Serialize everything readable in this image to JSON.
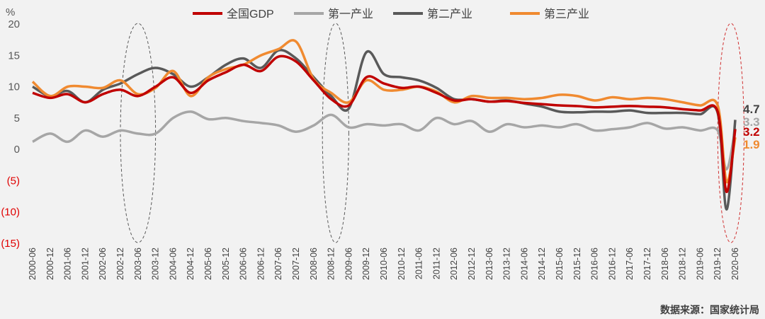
{
  "chart_data": {
    "type": "line",
    "ylabel": "%",
    "ylim": [
      -15,
      20
    ],
    "yticks": [
      20,
      15,
      10,
      5,
      0,
      -5,
      -10,
      -15
    ],
    "ytick_labels": [
      "20",
      "15",
      "10",
      "5",
      "0",
      "(5)",
      "(10)",
      "(15)"
    ],
    "xtick_labels": [
      "2000-06",
      "2000-12",
      "2001-06",
      "2001-12",
      "2002-06",
      "2002-12",
      "2003-06",
      "2003-12",
      "2004-06",
      "2004-12",
      "2005-06",
      "2005-12",
      "2006-06",
      "2006-12",
      "2007-06",
      "2007-12",
      "2008-06",
      "2008-12",
      "2009-06",
      "2009-12",
      "2010-06",
      "2010-12",
      "2011-06",
      "2011-12",
      "2012-06",
      "2012-12",
      "2013-06",
      "2013-12",
      "2014-06",
      "2014-12",
      "2015-06",
      "2015-12",
      "2016-06",
      "2016-12",
      "2017-06",
      "2017-12",
      "2018-06",
      "2018-12",
      "2019-06",
      "2019-12",
      "2020-06"
    ],
    "x": [
      "2000-06",
      "2000-12",
      "2001-06",
      "2001-12",
      "2002-06",
      "2002-12",
      "2003-06",
      "2003-12",
      "2004-06",
      "2004-12",
      "2005-06",
      "2005-12",
      "2006-06",
      "2006-12",
      "2007-06",
      "2007-12",
      "2008-06",
      "2008-12",
      "2009-06",
      "2009-12",
      "2010-06",
      "2010-12",
      "2011-06",
      "2011-12",
      "2012-06",
      "2012-12",
      "2013-06",
      "2013-12",
      "2014-06",
      "2014-12",
      "2015-06",
      "2015-12",
      "2016-06",
      "2016-12",
      "2017-06",
      "2017-12",
      "2018-06",
      "2018-12",
      "2019-06",
      "2019-12",
      "2020-03",
      "2020-06"
    ],
    "series": [
      {
        "name": "第一产业",
        "color": "#a6a6a6",
        "values": [
          1.2,
          2.5,
          1.2,
          3,
          2,
          3,
          2.5,
          2.5,
          5,
          6,
          4.8,
          5,
          4.5,
          4.2,
          3.8,
          2.8,
          3.8,
          5.5,
          3.5,
          4,
          3.8,
          4,
          3,
          5,
          4,
          4.5,
          2.8,
          4,
          3.5,
          3.8,
          3.5,
          4,
          3,
          3.2,
          3.5,
          4.2,
          3.3,
          3.5,
          3,
          3,
          -3.2,
          3.3
        ]
      },
      {
        "name": "第二产业",
        "color": "#595959",
        "values": [
          10,
          8.5,
          9.3,
          7.5,
          9.5,
          10.5,
          12,
          13,
          12,
          10,
          11.5,
          13.5,
          14.5,
          13,
          15.8,
          14.5,
          11.5,
          8.5,
          6.5,
          15.5,
          12,
          11.5,
          11,
          9.8,
          8,
          8,
          7.6,
          7.8,
          7.3,
          6.8,
          6,
          5.9,
          6,
          6,
          6.2,
          5.8,
          5.8,
          5.8,
          5.6,
          5.8,
          -9.6,
          4.7
        ]
      },
      {
        "name": "第三产业",
        "color": "#f08a30",
        "values": [
          10.8,
          8.5,
          10,
          10,
          9.8,
          11,
          8.8,
          9.8,
          12.5,
          8.5,
          11.5,
          12.8,
          13.5,
          15,
          16,
          17.2,
          11.2,
          9,
          7.5,
          11,
          9.5,
          9.5,
          10,
          9.2,
          7.5,
          8.5,
          8.2,
          8.2,
          8,
          8.2,
          8.7,
          8.5,
          7.8,
          8.3,
          8,
          8.2,
          8,
          7.5,
          7,
          7,
          -5.2,
          1.9
        ]
      },
      {
        "name": "全国GDP",
        "color": "#c00000",
        "values": [
          9,
          8.2,
          8.8,
          7.5,
          8.8,
          9.5,
          8.5,
          10,
          11.5,
          9,
          11,
          12.3,
          13.5,
          12.5,
          14.8,
          14,
          11,
          8,
          7,
          11.5,
          10.5,
          9.8,
          10,
          9,
          7.8,
          8,
          7.6,
          7.7,
          7.4,
          7.2,
          7,
          6.9,
          6.7,
          6.8,
          6.9,
          6.8,
          6.7,
          6.4,
          6.2,
          6,
          -6.8,
          3.2
        ]
      }
    ],
    "legend": {
      "position": "top",
      "entries": [
        "全国GDP",
        "第一产业",
        "第二产业",
        "第三产业"
      ]
    },
    "end_labels": [
      {
        "text": "4.7",
        "color": "#404040"
      },
      {
        "text": "3.3",
        "color": "#a6a6a6"
      },
      {
        "text": "3.2",
        "color": "#c00000"
      },
      {
        "text": "1.9",
        "color": "#f08a30"
      }
    ],
    "highlight_periods": [
      {
        "from": "2002-12",
        "to": "2003-12",
        "color": "#595959"
      },
      {
        "from": "2008-09",
        "to": "2009-06",
        "color": "#595959"
      },
      {
        "from": "2019-12",
        "to": "2020-09",
        "color": "#d03030"
      }
    ],
    "grid": false,
    "source": "数据来源：国家统计局"
  }
}
